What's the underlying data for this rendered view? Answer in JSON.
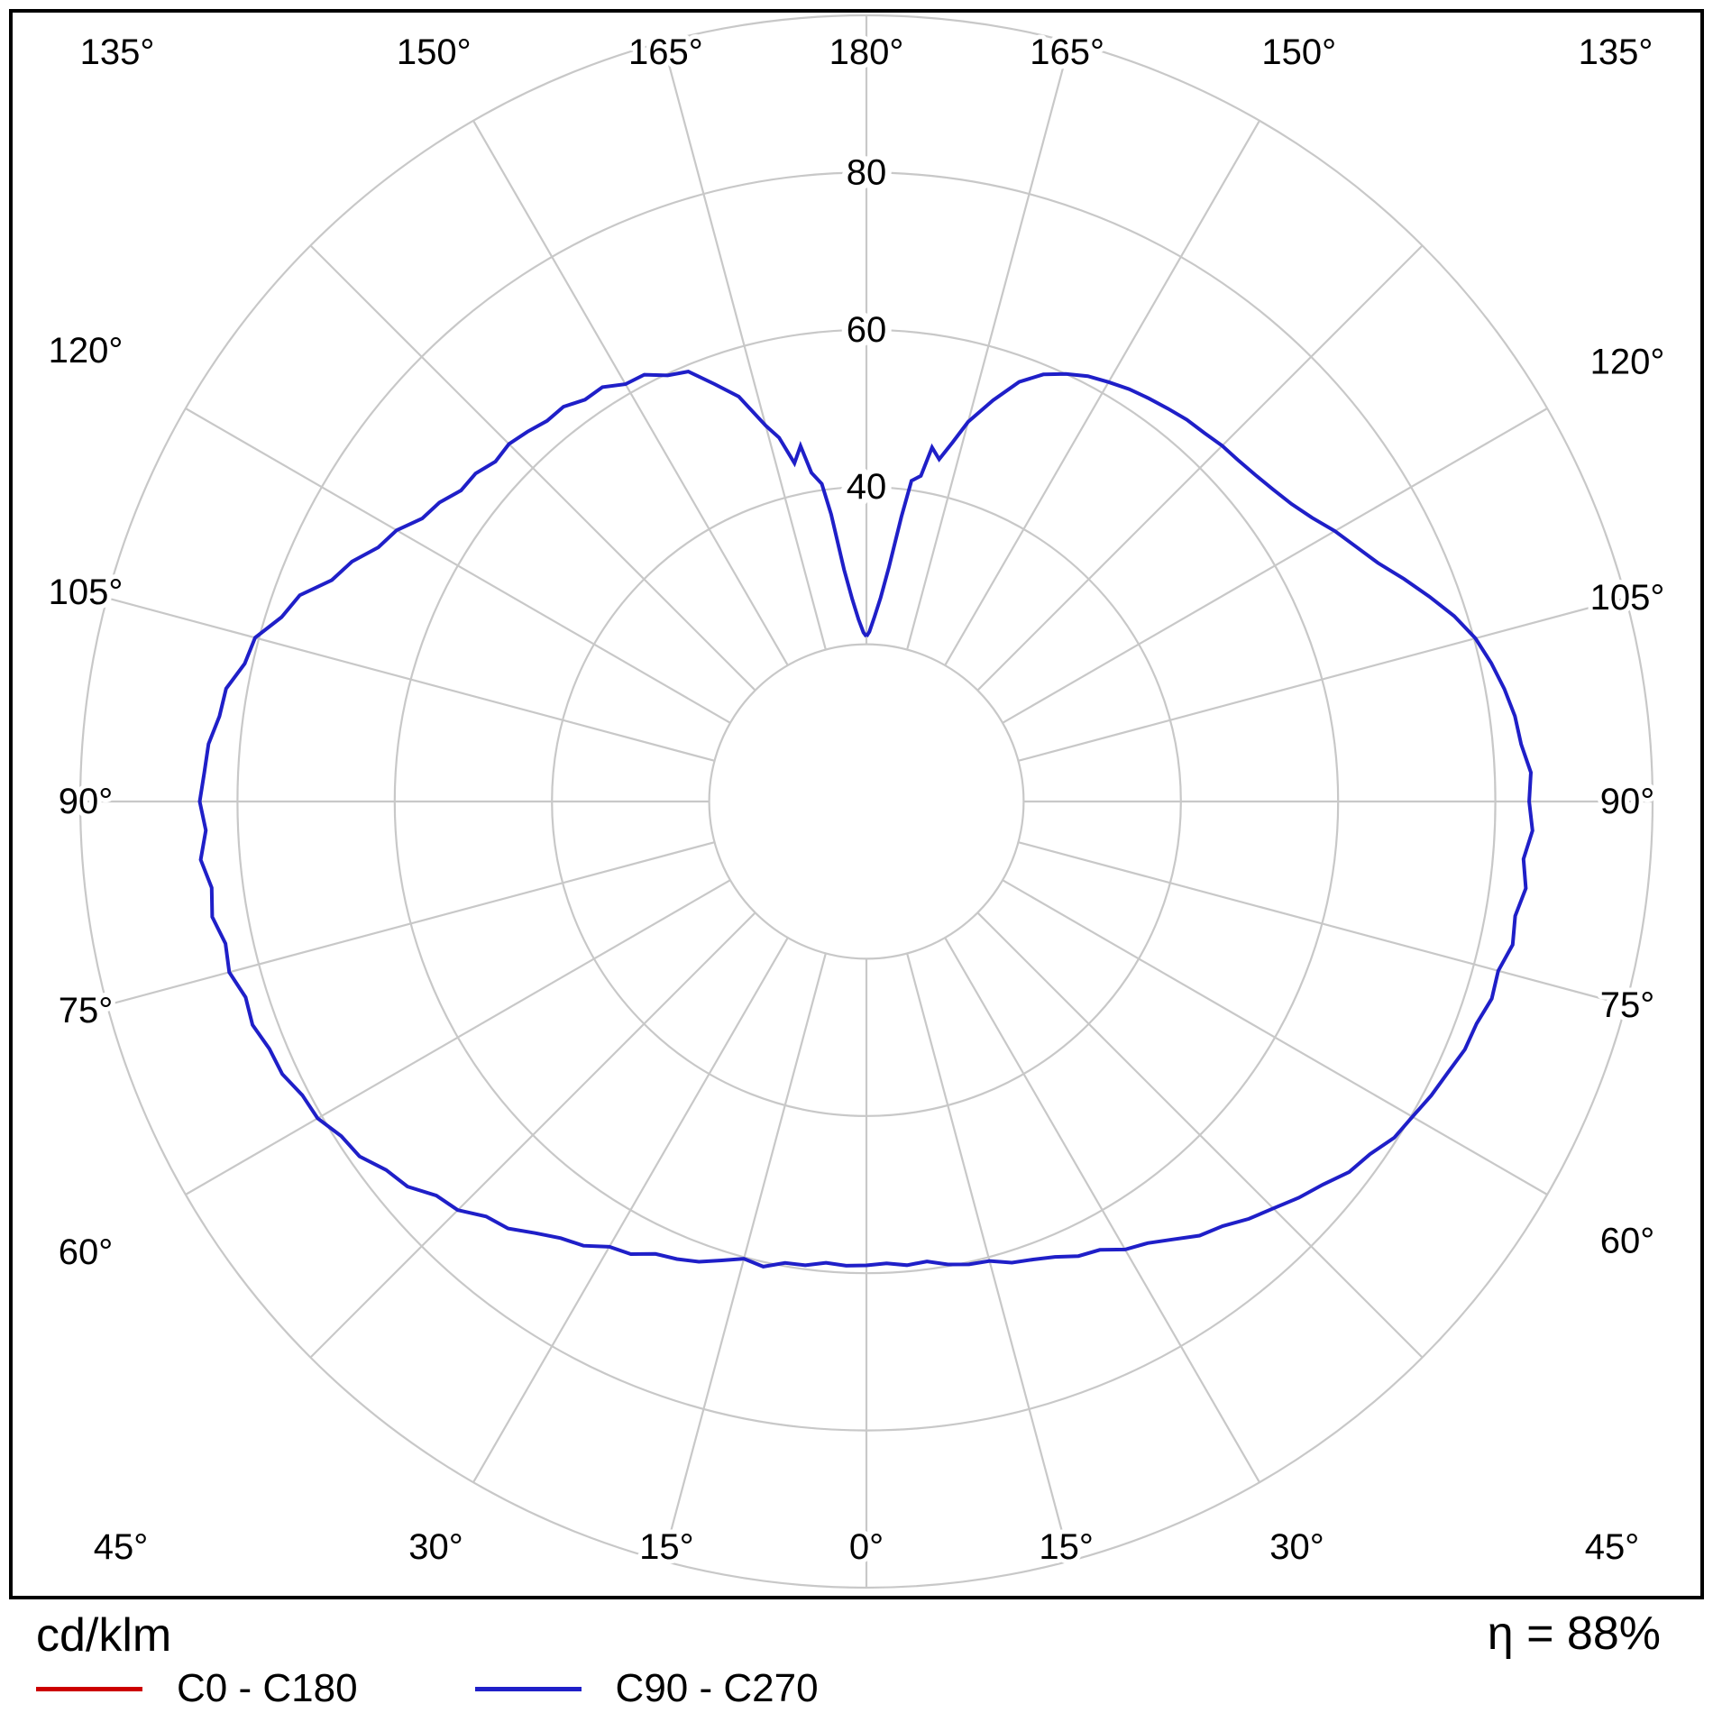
{
  "chart_data": {
    "type": "line",
    "projection": "polar",
    "title": "",
    "radial_unit": "cd/klm",
    "efficiency": "η = 88%",
    "gamma_zero_direction": "down",
    "grid_step_deg": 15,
    "grid_on": true,
    "grid_color": "#c8c8c8",
    "radial_rings": [
      20,
      40,
      60,
      80,
      100
    ],
    "radial_tick_labels": [
      40,
      60,
      80
    ],
    "radial_axis_max": 100,
    "angle_labels": [
      "0°",
      "15°",
      "30°",
      "45°",
      "60°",
      "75°",
      "90°",
      "105°",
      "120°",
      "135°",
      "150°",
      "165°",
      "180°"
    ],
    "legend_position": "bottom-left",
    "series": [
      {
        "name": "C0 - C180",
        "color": "#cc0000",
        "right_gamma_values": [],
        "left_gamma_values": []
      },
      {
        "name": "C90 - C270",
        "color": "#1f1fc8",
        "right_gamma_values": [
          [
            0,
            59.0
          ],
          [
            2.5,
            58.8
          ],
          [
            5,
            59.2
          ],
          [
            7.5,
            59.0
          ],
          [
            10,
            59.8
          ],
          [
            12.5,
            60.3
          ],
          [
            15,
            60.5
          ],
          [
            17.5,
            61.5
          ],
          [
            20,
            62.0
          ],
          [
            22.5,
            62.7
          ],
          [
            25,
            63.8
          ],
          [
            27.5,
            64.3
          ],
          [
            30,
            65.8
          ],
          [
            32.5,
            66.6
          ],
          [
            35,
            68.0
          ],
          [
            37.5,
            69.6
          ],
          [
            40,
            70.5
          ],
          [
            42.5,
            72.0
          ],
          [
            45,
            73.2
          ],
          [
            47.5,
            74.6
          ],
          [
            50,
            75.8
          ],
          [
            52.5,
            77.4
          ],
          [
            55,
            78.2
          ],
          [
            57.5,
            79.6
          ],
          [
            60,
            80.2
          ],
          [
            62.5,
            81.0
          ],
          [
            65,
            81.6
          ],
          [
            67.5,
            82.4
          ],
          [
            70,
            82.6
          ],
          [
            72.5,
            83.4
          ],
          [
            75,
            83.2
          ],
          [
            77.5,
            84.2
          ],
          [
            80,
            83.8
          ],
          [
            82.5,
            84.6
          ],
          [
            85,
            83.9
          ],
          [
            87.5,
            84.8
          ],
          [
            90,
            84.3
          ],
          [
            92.5,
            84.6
          ],
          [
            95,
            83.6
          ],
          [
            97.5,
            83.2
          ],
          [
            100,
            82.4
          ],
          [
            102.5,
            81.4
          ],
          [
            105,
            80.2
          ],
          [
            107.5,
            78.4
          ],
          [
            110,
            76.2
          ],
          [
            112.5,
            74.0
          ],
          [
            115,
            71.8
          ],
          [
            117.5,
            70.2
          ],
          [
            120,
            68.8
          ],
          [
            122.5,
            67.2
          ],
          [
            125,
            66.0
          ],
          [
            127.5,
            65.2
          ],
          [
            130,
            64.6
          ],
          [
            132.5,
            64.2
          ],
          [
            135,
            64.0
          ],
          [
            137.5,
            63.6
          ],
          [
            140,
            63.4
          ],
          [
            142.5,
            63.0
          ],
          [
            145,
            62.6
          ],
          [
            147.5,
            62.2
          ],
          [
            150,
            61.6
          ],
          [
            152.5,
            61.0
          ],
          [
            155,
            60.0
          ],
          [
            157.5,
            58.8
          ],
          [
            160,
            56.8
          ],
          [
            162.5,
            53.5
          ],
          [
            165,
            50.0
          ],
          [
            166.5,
            47.0
          ],
          [
            168,
            44.5
          ],
          [
            169.5,
            45.8
          ],
          [
            170.5,
            42.0
          ],
          [
            172,
            41.2
          ],
          [
            173,
            36.5
          ],
          [
            174.5,
            30.0
          ],
          [
            176,
            26.0
          ],
          [
            177.5,
            23.5
          ],
          [
            179,
            21.6
          ],
          [
            180,
            21.0
          ]
        ],
        "left_gamma_values": [
          [
            0,
            59.0
          ],
          [
            2.5,
            59.1
          ],
          [
            5,
            58.9
          ],
          [
            7.5,
            59.5
          ],
          [
            10,
            59.6
          ],
          [
            12.5,
            60.6
          ],
          [
            15,
            60.2
          ],
          [
            17.5,
            61.2
          ],
          [
            20,
            62.3
          ],
          [
            22.5,
            63.0
          ],
          [
            25,
            63.5
          ],
          [
            27.5,
            64.9
          ],
          [
            30,
            65.4
          ],
          [
            32.5,
            67.0
          ],
          [
            35,
            67.8
          ],
          [
            37.5,
            69.2
          ],
          [
            40,
            70.9
          ],
          [
            42.5,
            71.6
          ],
          [
            45,
            73.5
          ],
          [
            47.5,
            74.2
          ],
          [
            50,
            76.2
          ],
          [
            52.5,
            77.0
          ],
          [
            55,
            78.7
          ],
          [
            57.5,
            79.2
          ],
          [
            60,
            80.6
          ],
          [
            62.5,
            80.9
          ],
          [
            65,
            82.0
          ],
          [
            67.5,
            82.2
          ],
          [
            70,
            83.1
          ],
          [
            72.5,
            82.8
          ],
          [
            75,
            83.9
          ],
          [
            77.5,
            83.5
          ],
          [
            80,
            84.5
          ],
          [
            82.5,
            84.0
          ],
          [
            85,
            85.0
          ],
          [
            87.5,
            84.1
          ],
          [
            90,
            84.8
          ],
          [
            92.5,
            84.3
          ],
          [
            95,
            84.0
          ],
          [
            97.5,
            83.0
          ],
          [
            100,
            82.7
          ],
          [
            102.5,
            81.0
          ],
          [
            105,
            80.5
          ],
          [
            107.5,
            78.0
          ],
          [
            110,
            76.7
          ],
          [
            112.5,
            73.6
          ],
          [
            115,
            72.2
          ],
          [
            117.5,
            70.0
          ],
          [
            120,
            69.0
          ],
          [
            122.5,
            67.0
          ],
          [
            125,
            66.3
          ],
          [
            127.5,
            65.0
          ],
          [
            130,
            64.9
          ],
          [
            132.5,
            64.0
          ],
          [
            135,
            64.3
          ],
          [
            137.5,
            63.8
          ],
          [
            140,
            63.2
          ],
          [
            142.5,
            63.3
          ],
          [
            145,
            62.4
          ],
          [
            147.5,
            62.5
          ],
          [
            150,
            61.3
          ],
          [
            152.5,
            61.2
          ],
          [
            155,
            59.8
          ],
          [
            157.5,
            59.2
          ],
          [
            160,
            56.5
          ],
          [
            162.5,
            54.0
          ],
          [
            165,
            49.5
          ],
          [
            166.5,
            47.6
          ],
          [
            168,
            44.0
          ],
          [
            169.5,
            46.0
          ],
          [
            170.5,
            42.4
          ],
          [
            172,
            40.8
          ],
          [
            173,
            36.8
          ],
          [
            174.5,
            29.6
          ],
          [
            176,
            25.8
          ],
          [
            177.5,
            23.2
          ],
          [
            179,
            21.5
          ],
          [
            180,
            21.0
          ]
        ]
      }
    ]
  }
}
